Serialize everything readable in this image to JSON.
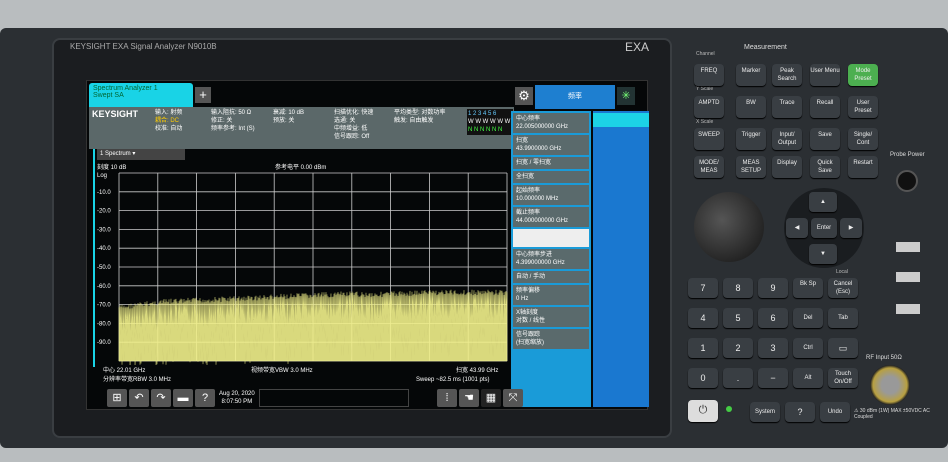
{
  "instrument": {
    "brand": "KEYSIGHT  EXA Signal Analyzer  N9010B",
    "model": "EXA"
  },
  "screen": {
    "tab": "Spectrum Analyzer 1\nSwept SA",
    "add": "+",
    "info": {
      "logo": "KEYSIGHT",
      "c1": [
        "输入: 射频",
        "耦合: DC",
        "校准: 自动"
      ],
      "c2": [
        "输入阻抗: 50 Ω",
        "修正: 关",
        "频率参考: Int (S)"
      ],
      "c3": [
        "衰减: 10 dB",
        "预放: 关"
      ],
      "c4": [
        "扫描优化: 快速",
        "选通: 关",
        "中频增益: 低",
        "信号跟踪: Off"
      ],
      "c5": [
        "平均类型: 对数功率",
        "触发: 自由触发"
      ],
      "traces": "1 2 3 4 5 6",
      "trace_types": "W W W W W W",
      "trace_det": "N N N N N N"
    },
    "menu_title": "频率",
    "gear": "⚙",
    "spin": "✳",
    "menu": [
      {
        "label": "中心频率",
        "value": "22.005000000 GHz"
      },
      {
        "label": "扫宽",
        "value": "43.9900000 GHz"
      },
      {
        "label": "扫宽 / 零扫宽",
        "value": ""
      },
      {
        "label": "全扫宽",
        "value": ""
      },
      {
        "label": "起始频率",
        "value": "10.000000 MHz"
      },
      {
        "label": "截止频率",
        "value": "44.000000000 GHz"
      },
      {
        "label": "",
        "value": ""
      },
      {
        "label": "中心频率步进",
        "value": "4.399000000 GHz"
      },
      {
        "label": "自动 / 手动",
        "value": ""
      },
      {
        "label": "频率偏移",
        "value": "0 Hz"
      },
      {
        "label": "X轴刻度",
        "value": "对数 / 线性"
      },
      {
        "label": "信号跟踪",
        "value": "(扫宽缩放)"
      }
    ],
    "window": "1 Spectrum",
    "scale": "刻度 10 dB",
    "ref": "参考电平 0.00 dBm",
    "log": "Log",
    "bottom": {
      "center": "中心 22.01 GHz",
      "rbw": "分辨率带宽RBW 3.0 MHz",
      "vbw": "视频带宽VBW 3.0 MHz",
      "span": "扫宽 43.99 GHz",
      "sweep": "Sweep ~82.5 ms (1001 pts)"
    },
    "date": "Aug 20, 2020",
    "time": "8:07:50 PM"
  },
  "chart_data": {
    "type": "line",
    "ylabel": "",
    "yticks": [
      "-10.0",
      "-20.0",
      "-30.0",
      "-40.0",
      "-50.0",
      "-60.0",
      "-70.0",
      "-80.0",
      "-90.0"
    ],
    "ylim": [
      -100,
      0
    ],
    "xlim_GHz": [
      0.01,
      44.0
    ],
    "grid": true,
    "series": [
      {
        "color": "#f1f08a",
        "x": [
          0.01,
          5,
          10,
          15,
          20,
          25,
          30,
          35,
          40,
          44
        ],
        "y": [
          -70,
          -67,
          -66,
          -65,
          -64,
          -63,
          -63,
          -62,
          -62,
          -62
        ]
      }
    ]
  },
  "panel": {
    "measurement": "Measurement",
    "channel": "Channel",
    "yscale": "Y Scale",
    "xscale": "X Scale",
    "keys": [
      "FREQ",
      "Marker",
      "Peak Search",
      "User Menu",
      "Mode Preset",
      "AMPTD",
      "BW",
      "Trace",
      "Recall",
      "User Preset",
      "SWEEP",
      "Trigger",
      "Input/ Output",
      "Save",
      "Single/ Cont",
      "MODE/ MEAS",
      "MEAS SETUP",
      "Display",
      "Quick Save",
      "Restart"
    ],
    "numpad": [
      "7",
      "8",
      "9",
      "Bk Sp",
      "Cancel (Esc)",
      "4",
      "5",
      "6",
      "Del",
      "Tab",
      "1",
      "2",
      "3",
      "Ctrl",
      "▭",
      "0",
      ".",
      "−",
      "Alt",
      "Touch On/Off"
    ],
    "system": "System",
    "help": "?",
    "undo": "Undo",
    "enter": "Enter",
    "local": "Local",
    "probe": "Probe Power",
    "rf": "RF Input 50Ω",
    "rfwarn": "⚠ 30 dBm (1W) MAX ±50VDC AC Coupled",
    "power": "⏻"
  },
  "colors": {
    "accent": "#19d3e6",
    "menu": "#1a9bd8",
    "trace": "#f1f08a",
    "preset": "#4caf50"
  }
}
